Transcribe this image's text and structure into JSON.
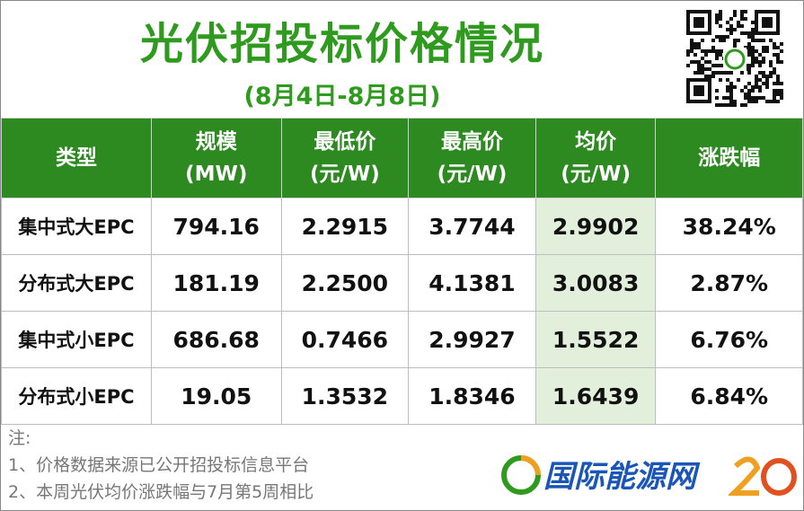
{
  "header": {
    "title": "光伏招投标价格情况",
    "subtitle": "(8月4日-8月8日)"
  },
  "table": {
    "header": [
      [
        "类型"
      ],
      [
        "规模",
        "(MW)"
      ],
      [
        "最低价",
        "(元/W)"
      ],
      [
        "最高价",
        "(元/W)"
      ],
      [
        "均价",
        "(元/W)"
      ],
      [
        "涨跌幅"
      ]
    ],
    "rows": [
      [
        "集中式大EPC",
        "794.16",
        "2.2915",
        "3.7744",
        "2.9902",
        "38.24%"
      ],
      [
        "分布式大EPC",
        "181.19",
        "2.2500",
        "4.1381",
        "3.0083",
        "2.87%"
      ],
      [
        "集中式小EPC",
        "686.68",
        "0.7466",
        "2.9927",
        "1.5522",
        "6.76%"
      ],
      [
        "分布式小EPC",
        "19.05",
        "1.3532",
        "1.8346",
        "1.6439",
        "6.84%"
      ]
    ]
  },
  "notes": [
    "注:",
    "1、价格数据来源已公开招投标信息平台",
    "2、本周光伏均价涨跌幅与7月第5周相比"
  ],
  "logo": {
    "text": "国际能源网"
  }
}
